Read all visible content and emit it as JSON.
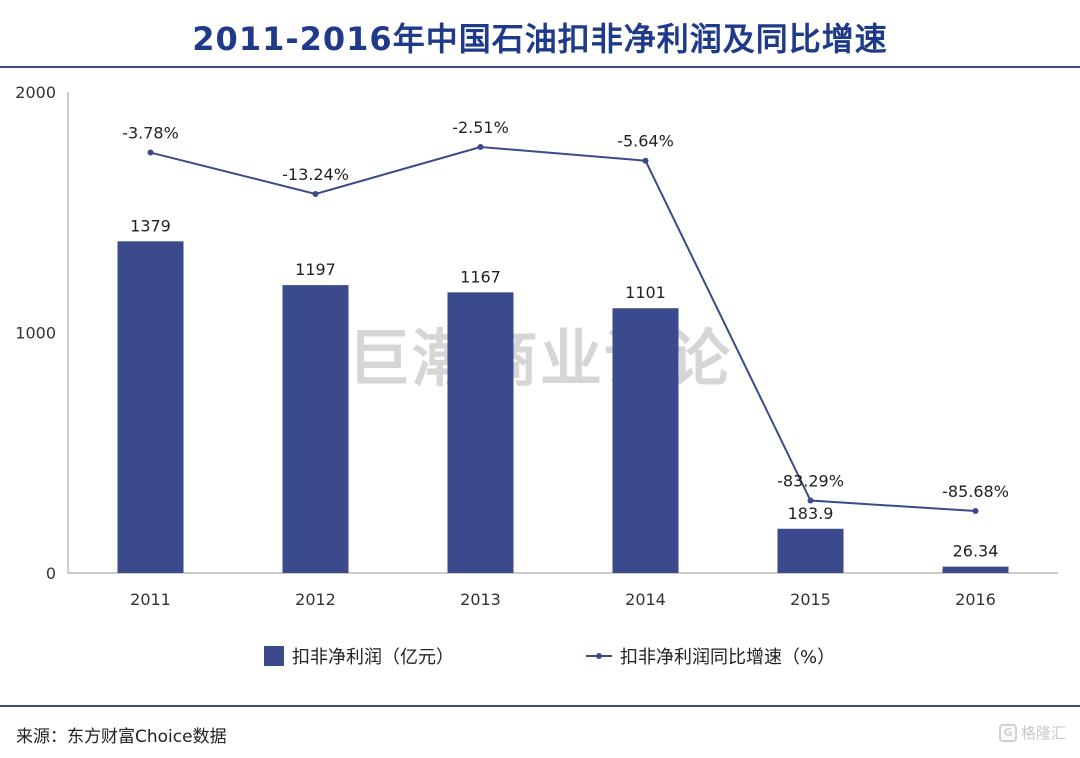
{
  "title": "2011-2016年中国石油扣非净利润及同比增速",
  "source": "来源：东方财富Choice数据",
  "watermark": "巨潮商业评论",
  "logo_text": "格隆汇",
  "colors": {
    "bar": "#3a4a8c",
    "line": "#3a4a8c",
    "title": "#1f3a8a"
  },
  "chart_data": {
    "type": "bar",
    "categories": [
      "2011",
      "2012",
      "2013",
      "2014",
      "2015",
      "2016"
    ],
    "series": [
      {
        "name": "扣非净利润（亿元）",
        "type": "bar",
        "values": [
          1379,
          1197,
          1167,
          1101,
          183.9,
          26.34
        ],
        "labels": [
          "1379",
          "1197",
          "1167",
          "1101",
          "183.9",
          "26.34"
        ]
      },
      {
        "name": "扣非净利润同比增速（%）",
        "type": "line",
        "values": [
          -3.78,
          -13.24,
          -2.51,
          -5.64,
          -83.29,
          -85.68
        ],
        "labels": [
          "-3.78%",
          "-13.24%",
          "-2.51%",
          "-5.64%",
          "-83.29%",
          "-85.68%"
        ]
      }
    ],
    "yaxis": {
      "ticks": [
        "0",
        "1000",
        "2000"
      ],
      "ylim": [
        0,
        2000
      ]
    },
    "legend_position": "bottom",
    "grid": false
  }
}
